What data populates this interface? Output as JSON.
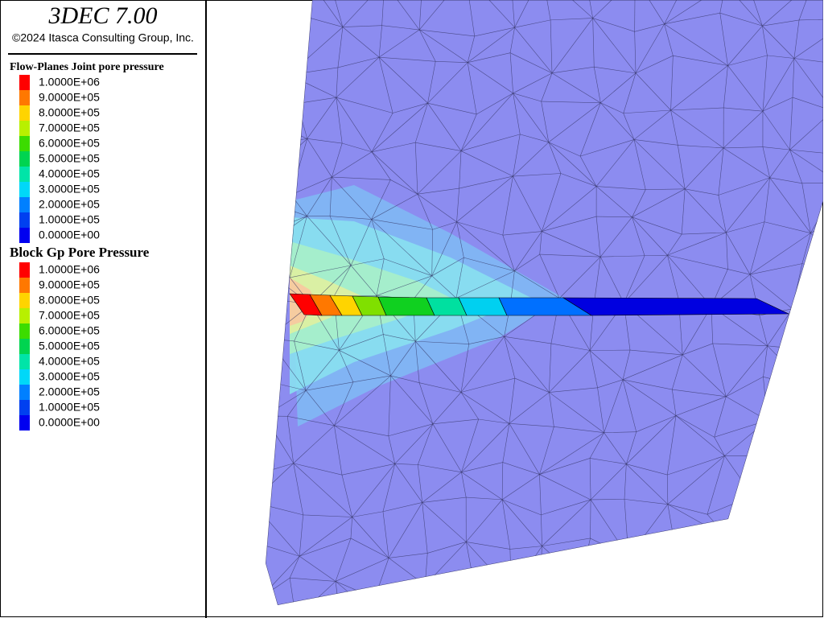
{
  "header": {
    "title": "3DEC 7.00",
    "copyright": "©2024 Itasca Consulting Group, Inc."
  },
  "legends": [
    {
      "title": "Flow-Planes Joint pore pressure",
      "entries": [
        {
          "label": "1.0000E+06",
          "color": "#ff0000"
        },
        {
          "label": "9.0000E+05",
          "color": "#ff7800"
        },
        {
          "label": "8.0000E+05",
          "color": "#ffd400"
        },
        {
          "label": "7.0000E+05",
          "color": "#b8f000"
        },
        {
          "label": "6.0000E+05",
          "color": "#3cdc00"
        },
        {
          "label": "5.0000E+05",
          "color": "#00d450"
        },
        {
          "label": "4.0000E+05",
          "color": "#00e4a8"
        },
        {
          "label": "3.0000E+05",
          "color": "#00d8f8"
        },
        {
          "label": "2.0000E+05",
          "color": "#0080ff"
        },
        {
          "label": "1.0000E+05",
          "color": "#0040f0"
        },
        {
          "label": "0.0000E+00",
          "color": "#0000f0"
        }
      ]
    },
    {
      "title": "Block  Gp Pore Pressure",
      "entries": [
        {
          "label": "1.0000E+06",
          "color": "#ff0000"
        },
        {
          "label": "9.0000E+05",
          "color": "#ff7800"
        },
        {
          "label": "8.0000E+05",
          "color": "#ffd400"
        },
        {
          "label": "7.0000E+05",
          "color": "#b8f000"
        },
        {
          "label": "6.0000E+05",
          "color": "#3cdc00"
        },
        {
          "label": "5.0000E+05",
          "color": "#00d450"
        },
        {
          "label": "4.0000E+05",
          "color": "#00e4a8"
        },
        {
          "label": "3.0000E+05",
          "color": "#00d8f8"
        },
        {
          "label": "2.0000E+05",
          "color": "#0080ff"
        },
        {
          "label": "1.0000E+05",
          "color": "#0040f0"
        },
        {
          "label": "0.0000E+00",
          "color": "#0000f0"
        }
      ]
    }
  ]
}
